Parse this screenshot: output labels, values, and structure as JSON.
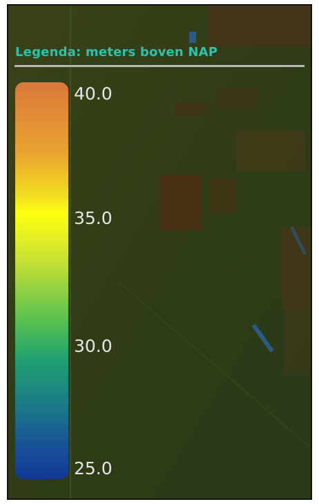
{
  "legend": {
    "title": "Legenda: meters boven NAP",
    "scale": {
      "min": 25.0,
      "max": 40.0,
      "colors": [
        "#103a96",
        "#1a7888",
        "#20a070",
        "#58c050",
        "#c8e034",
        "#ffff10",
        "#f2e020",
        "#e8a030",
        "#d9783a"
      ]
    },
    "labels": [
      "40.0",
      "35.0",
      "30.0",
      "25.0"
    ]
  }
}
